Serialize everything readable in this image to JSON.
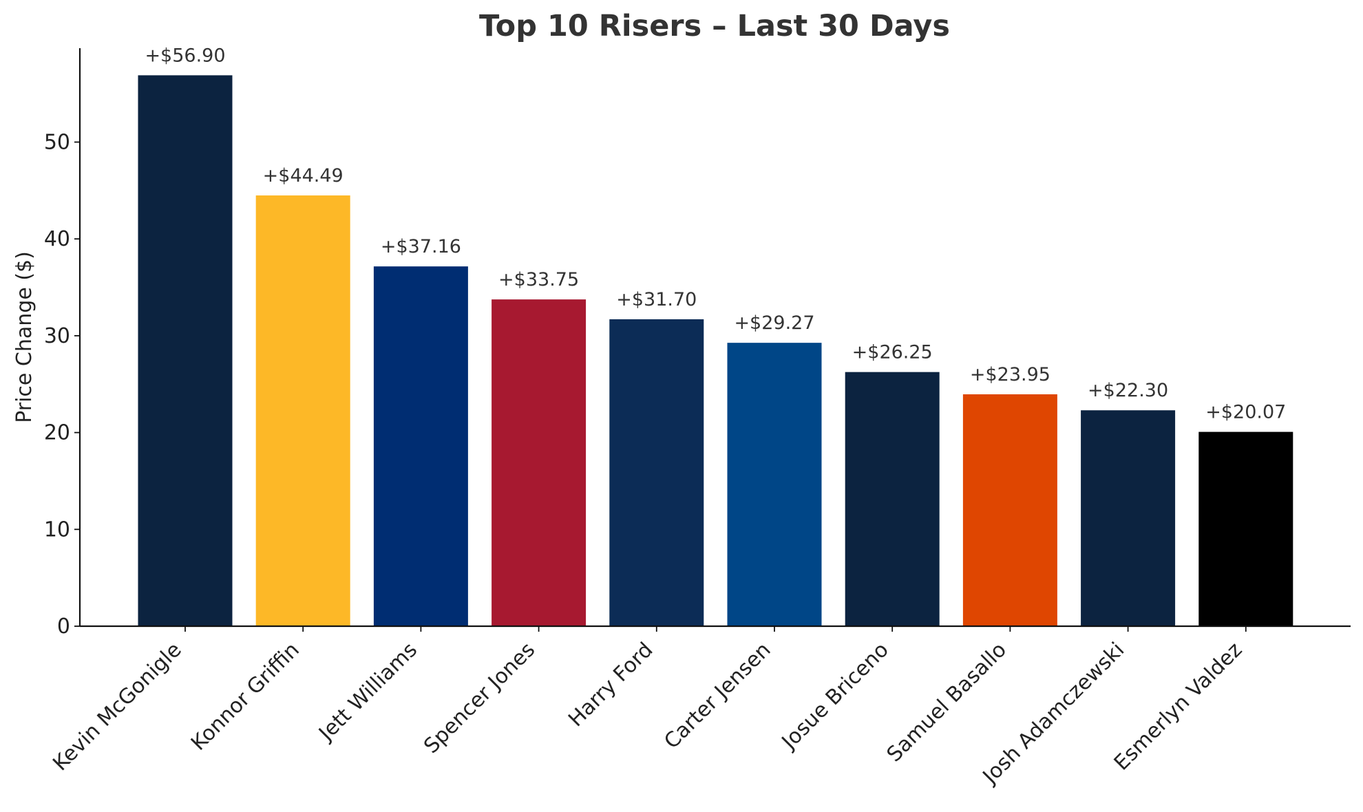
{
  "chart_data": {
    "type": "bar",
    "title": "Top 10 Risers – Last 30 Days",
    "xlabel": "",
    "ylabel": "Price Change ($)",
    "ylim": [
      0,
      59.7
    ],
    "yticks": [
      0,
      10,
      20,
      30,
      40,
      50
    ],
    "grid": false,
    "legend": "none",
    "categories": [
      "Kevin McGonigle",
      "Konnor Griffin",
      "Jett Williams",
      "Spencer Jones",
      "Harry Ford",
      "Carter Jensen",
      "Josue Briceno",
      "Samuel Basallo",
      "Josh Adamczewski",
      "Esmerlyn Valdez"
    ],
    "values": [
      56.9,
      44.49,
      37.16,
      33.75,
      31.7,
      29.27,
      26.25,
      23.95,
      22.3,
      20.07
    ],
    "data_labels": [
      "+$56.90",
      "+$44.49",
      "+$37.16",
      "+$33.75",
      "+$31.70",
      "+$29.27",
      "+$26.25",
      "+$23.95",
      "+$22.30",
      "+$20.07"
    ],
    "colors": [
      "#0c2340",
      "#fdb827",
      "#002d72",
      "#a71930",
      "#0c2c56",
      "#004687",
      "#0c2340",
      "#df4601",
      "#0c2340",
      "#000000"
    ]
  }
}
